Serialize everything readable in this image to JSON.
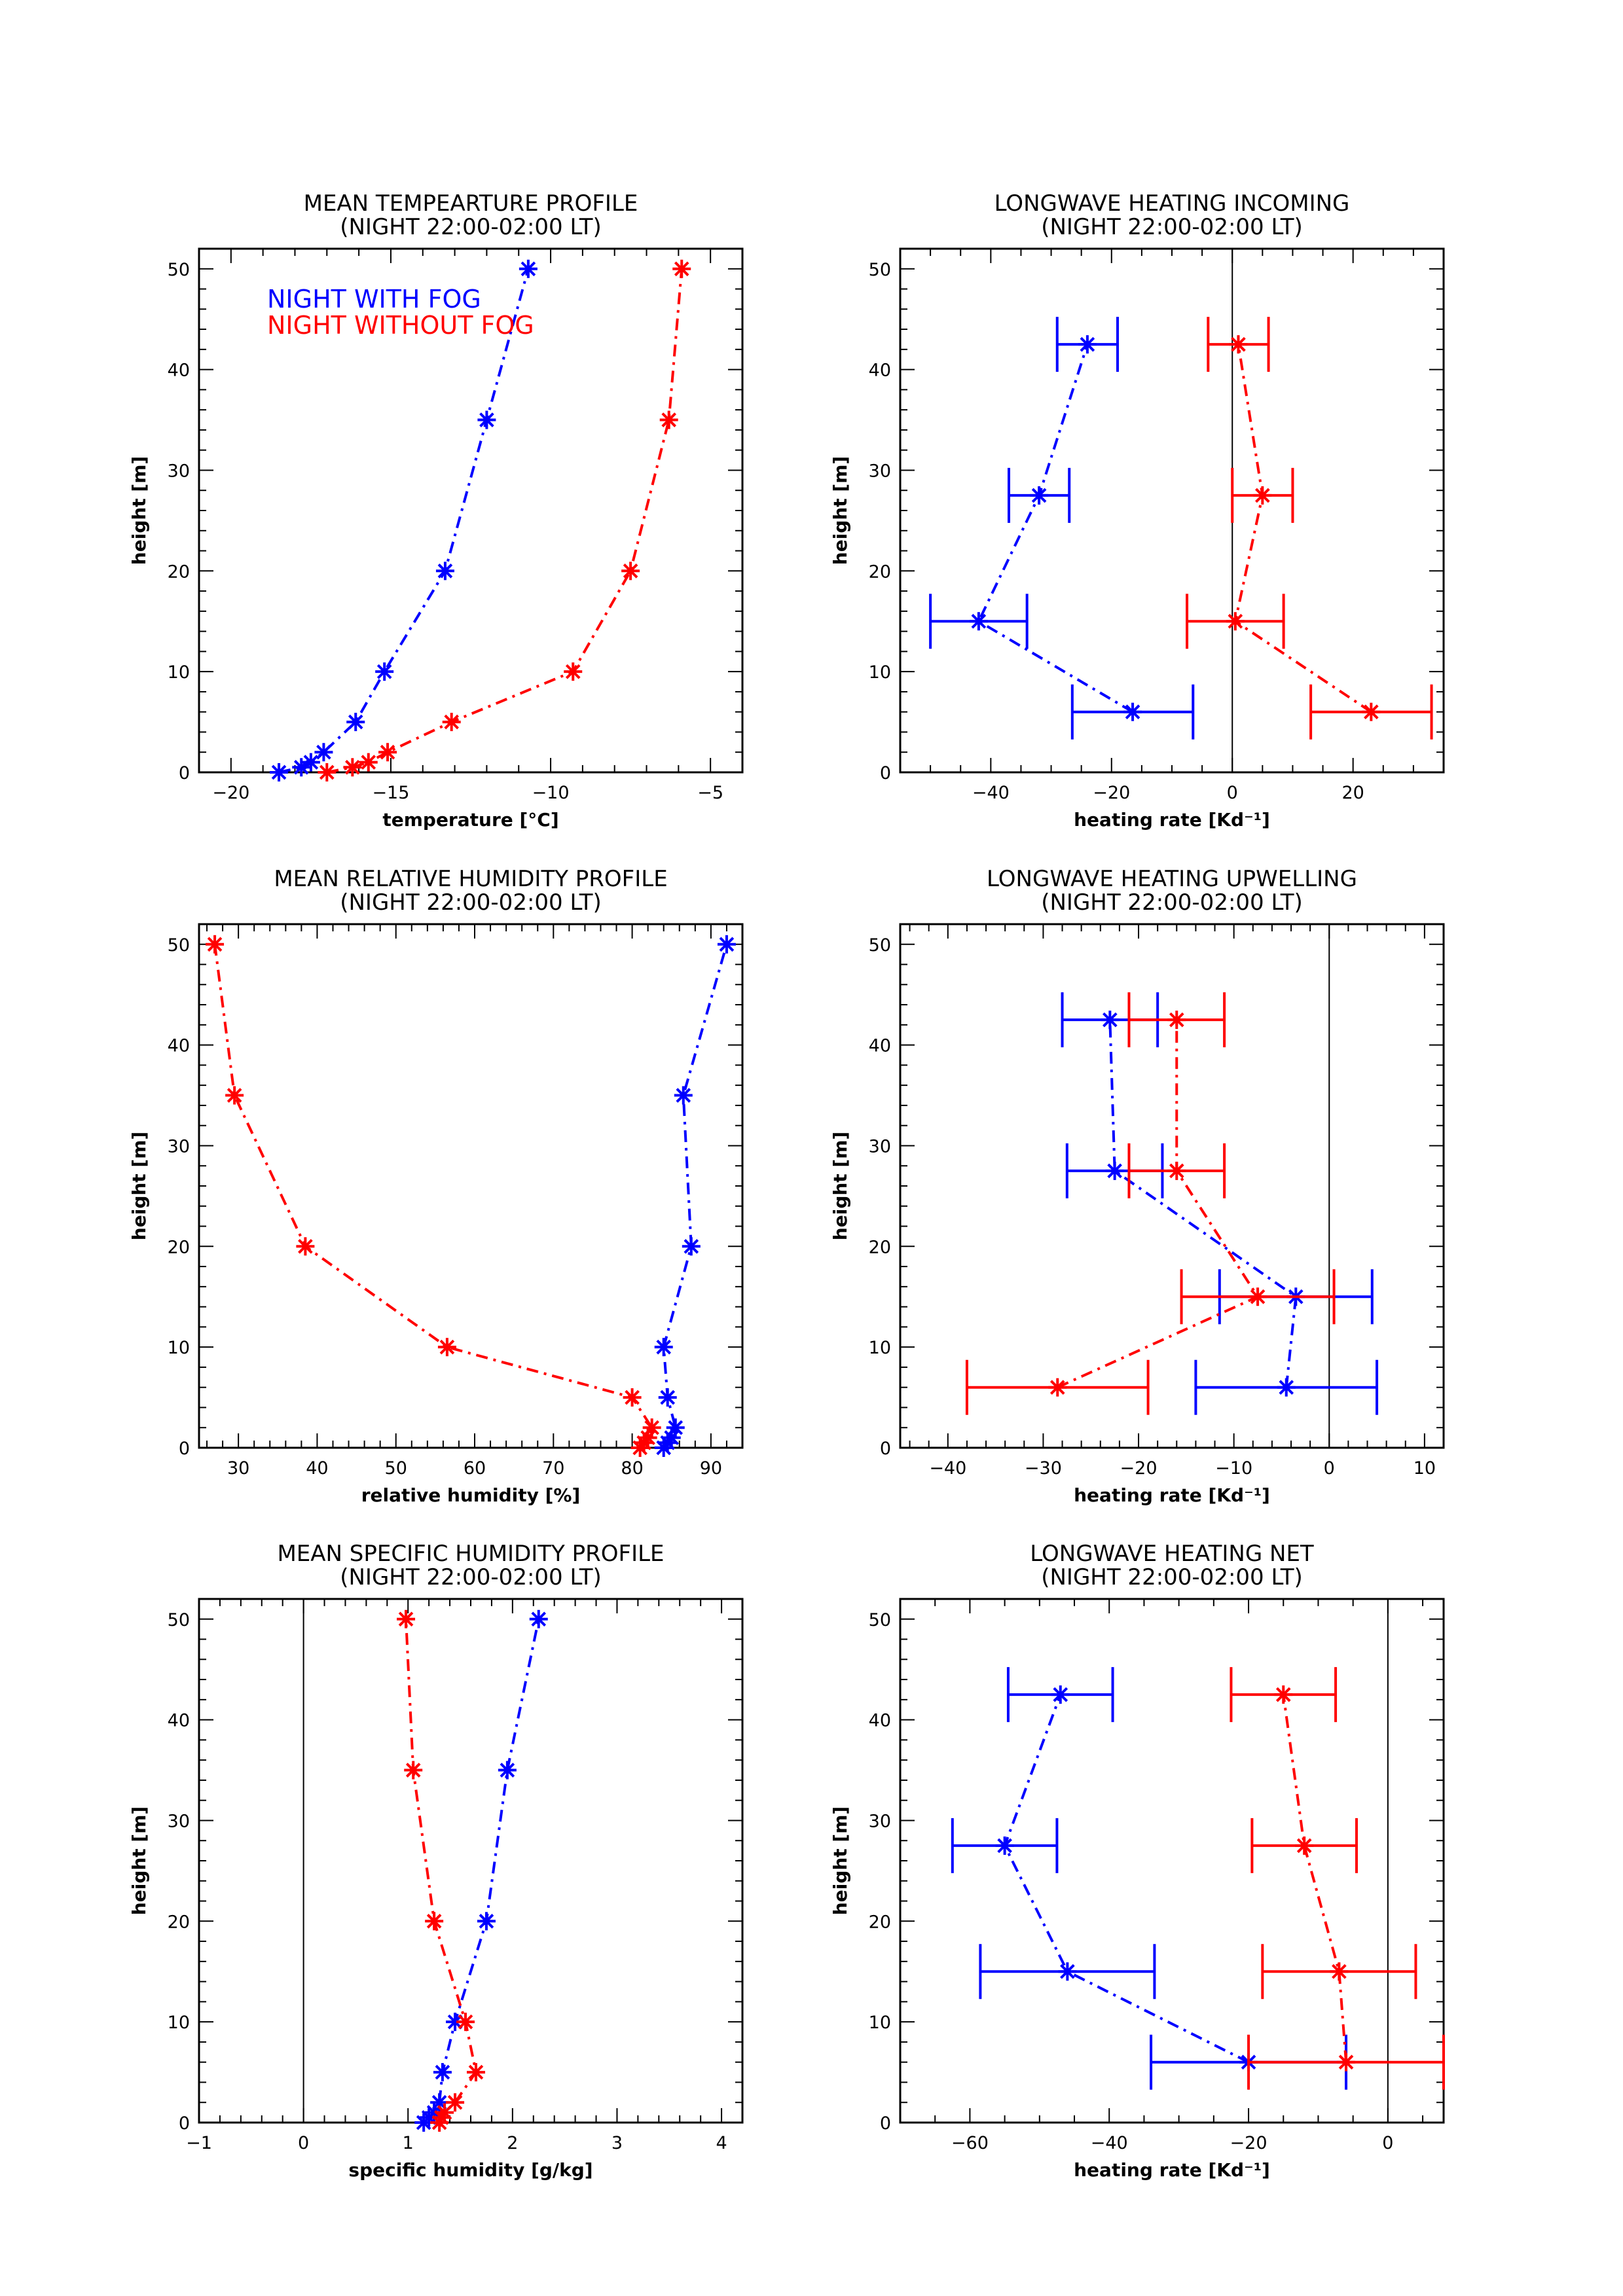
{
  "colors": {
    "fog": "#0000ff",
    "nofog": "#ff0000",
    "axis": "#000000"
  },
  "chart_data": [
    {
      "type": "line",
      "title": "MEAN TEMPEARTURE PROFILE",
      "subtitle": "(NIGHT 22:00-02:00 LT)",
      "xlabel": "temperature [°C]",
      "ylabel": "height [m]",
      "xlim": [
        -21,
        -4
      ],
      "ylim": [
        0,
        52
      ],
      "xticks": [
        -20,
        -15,
        -10,
        -5
      ],
      "yticks": [
        0,
        10,
        20,
        30,
        40,
        50
      ],
      "xminor": 5,
      "yminor": 5,
      "vline": null,
      "legend": [
        {
          "name": "NIGHT WITH FOG",
          "color": "#0000ff"
        },
        {
          "name": "NIGHT WITHOUT FOG",
          "color": "#ff0000"
        }
      ],
      "legend_position": "top-left",
      "series": [
        {
          "name": "NIGHT WITH FOG",
          "color": "#0000ff",
          "points": [
            [
              -18.5,
              0
            ],
            [
              -17.8,
              0.5
            ],
            [
              -17.5,
              1
            ],
            [
              -17.1,
              2
            ],
            [
              -16.1,
              5
            ],
            [
              -15.2,
              10
            ],
            [
              -13.3,
              20
            ],
            [
              -12.0,
              35
            ],
            [
              -10.7,
              50
            ]
          ]
        },
        {
          "name": "NIGHT WITHOUT FOG",
          "color": "#ff0000",
          "points": [
            [
              -17.0,
              0
            ],
            [
              -16.2,
              0.5
            ],
            [
              -15.7,
              1
            ],
            [
              -15.1,
              2
            ],
            [
              -13.1,
              5
            ],
            [
              -9.3,
              10
            ],
            [
              -7.5,
              20
            ],
            [
              -6.3,
              35
            ],
            [
              -5.9,
              50
            ]
          ]
        }
      ]
    },
    {
      "type": "scatter",
      "title": "LONGWAVE HEATING INCOMING",
      "subtitle": "(NIGHT 22:00-02:00 LT)",
      "xlabel": "heating rate [Kd⁻¹]",
      "ylabel": "height [m]",
      "xlim": [
        -55,
        35
      ],
      "ylim": [
        0,
        52
      ],
      "xticks": [
        -40,
        -20,
        0,
        20
      ],
      "yticks": [
        0,
        10,
        20,
        30,
        40,
        50
      ],
      "xminor": 4,
      "yminor": 5,
      "vline": 0,
      "series": [
        {
          "color": "#0000ff",
          "points": [
            [
              -16.5,
              6,
              10
            ],
            [
              -42,
              15,
              8
            ],
            [
              -32,
              27.5,
              5
            ],
            [
              -24,
              42.5,
              5
            ]
          ]
        },
        {
          "color": "#ff0000",
          "points": [
            [
              23,
              6,
              10
            ],
            [
              0.5,
              15,
              8
            ],
            [
              5,
              27.5,
              5
            ],
            [
              1,
              42.5,
              5
            ]
          ]
        }
      ]
    },
    {
      "type": "line",
      "title": "MEAN RELATIVE HUMIDITY PROFILE",
      "subtitle": "(NIGHT 22:00-02:00 LT)",
      "xlabel": "relative humidity [%]",
      "ylabel": "height [m]",
      "xlim": [
        25,
        94
      ],
      "ylim": [
        0,
        52
      ],
      "xticks": [
        30,
        40,
        50,
        60,
        70,
        80,
        90
      ],
      "yticks": [
        0,
        10,
        20,
        30,
        40,
        50
      ],
      "xminor": 5,
      "yminor": 5,
      "vline": null,
      "series": [
        {
          "color": "#0000ff",
          "points": [
            [
              84,
              0
            ],
            [
              84.5,
              0.5
            ],
            [
              85,
              1
            ],
            [
              85.5,
              2
            ],
            [
              84.5,
              5
            ],
            [
              84,
              10
            ],
            [
              87.5,
              20
            ],
            [
              86.5,
              35
            ],
            [
              92,
              50
            ]
          ]
        },
        {
          "color": "#ff0000",
          "points": [
            [
              81,
              0
            ],
            [
              81.5,
              0.5
            ],
            [
              82,
              1
            ],
            [
              82.5,
              2
            ],
            [
              80,
              5
            ],
            [
              56.5,
              10
            ],
            [
              38.5,
              20
            ],
            [
              29.5,
              35
            ],
            [
              27,
              50
            ]
          ]
        }
      ]
    },
    {
      "type": "scatter",
      "title": "LONGWAVE HEATING UPWELLING",
      "subtitle": "(NIGHT 22:00-02:00 LT)",
      "xlabel": "heating rate [Kd⁻¹]",
      "ylabel": "height [m]",
      "xlim": [
        -45,
        12
      ],
      "ylim": [
        0,
        52
      ],
      "xticks": [
        -40,
        -30,
        -20,
        -10,
        0,
        10
      ],
      "yticks": [
        0,
        10,
        20,
        30,
        40,
        50
      ],
      "xminor": 5,
      "yminor": 5,
      "vline": 0,
      "series": [
        {
          "color": "#0000ff",
          "points": [
            [
              -4.5,
              6,
              9.5
            ],
            [
              -3.5,
              15,
              8
            ],
            [
              -22.5,
              27.5,
              5
            ],
            [
              -23,
              42.5,
              5
            ]
          ]
        },
        {
          "color": "#ff0000",
          "points": [
            [
              -28.5,
              6,
              9.5
            ],
            [
              -7.5,
              15,
              8
            ],
            [
              -16,
              27.5,
              5
            ],
            [
              -16,
              42.5,
              5
            ]
          ]
        }
      ]
    },
    {
      "type": "line",
      "title": "MEAN SPECIFIC HUMIDITY PROFILE",
      "subtitle": "(NIGHT 22:00-02:00 LT)",
      "xlabel": "specific humidity [g/kg]",
      "ylabel": "height [m]",
      "xlim": [
        -1,
        4.2
      ],
      "ylim": [
        0,
        52
      ],
      "xticks": [
        -1,
        0,
        1,
        2,
        3,
        4
      ],
      "yticks": [
        0,
        10,
        20,
        30,
        40,
        50
      ],
      "xminor": 5,
      "yminor": 5,
      "vline": 0,
      "series": [
        {
          "color": "#0000ff",
          "points": [
            [
              1.15,
              0
            ],
            [
              1.2,
              0.5
            ],
            [
              1.25,
              1
            ],
            [
              1.3,
              2
            ],
            [
              1.33,
              5
            ],
            [
              1.45,
              10
            ],
            [
              1.75,
              20
            ],
            [
              1.95,
              35
            ],
            [
              2.25,
              50
            ]
          ]
        },
        {
          "color": "#ff0000",
          "points": [
            [
              1.3,
              0
            ],
            [
              1.32,
              0.5
            ],
            [
              1.35,
              1
            ],
            [
              1.45,
              2
            ],
            [
              1.65,
              5
            ],
            [
              1.55,
              10
            ],
            [
              1.25,
              20
            ],
            [
              1.05,
              35
            ],
            [
              0.98,
              50
            ]
          ]
        }
      ]
    },
    {
      "type": "scatter",
      "title": "LONGWAVE HEATING NET",
      "subtitle": "(NIGHT 22:00-02:00 LT)",
      "xlabel": "heating rate [Kd⁻¹]",
      "ylabel": "height [m]",
      "xlim": [
        -70,
        8
      ],
      "ylim": [
        0,
        52
      ],
      "xticks": [
        -60,
        -40,
        -20,
        0
      ],
      "yticks": [
        0,
        10,
        20,
        30,
        40,
        50
      ],
      "xminor": 4,
      "yminor": 5,
      "vline": 0,
      "series": [
        {
          "color": "#0000ff",
          "points": [
            [
              -20,
              6,
              14
            ],
            [
              -46,
              15,
              12.5
            ],
            [
              -55,
              27.5,
              7.5
            ],
            [
              -47,
              42.5,
              7.5
            ]
          ]
        },
        {
          "color": "#ff0000",
          "points": [
            [
              -6,
              6,
              14
            ],
            [
              -7,
              15,
              11
            ],
            [
              -12,
              27.5,
              7.5
            ],
            [
              -15,
              42.5,
              7.5
            ]
          ]
        }
      ]
    }
  ]
}
